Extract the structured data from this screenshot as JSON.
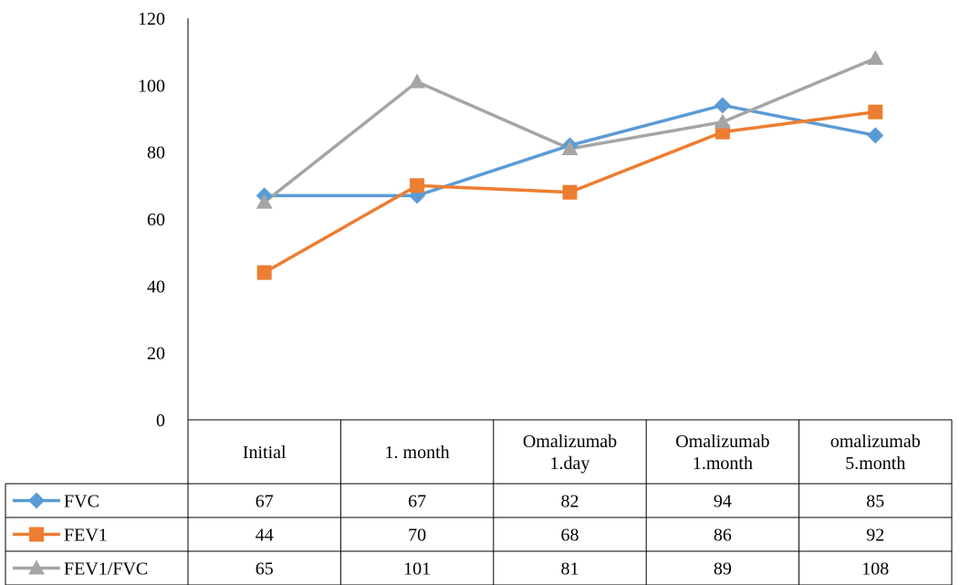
{
  "chart_data": {
    "type": "line",
    "title": "",
    "xlabel": "",
    "ylabel": "",
    "ylim": [
      0,
      120
    ],
    "yticks": [
      0,
      20,
      40,
      60,
      80,
      100,
      120
    ],
    "grid": false,
    "legend": "data-table",
    "categories": [
      [
        "Initial"
      ],
      [
        "1. month"
      ],
      [
        "Omalizumab",
        "1.day"
      ],
      [
        "Omalizumab",
        "1.month"
      ],
      [
        "omalizumab",
        "5.month"
      ]
    ],
    "series": [
      {
        "name": "FVC",
        "color": "#5B9BD5",
        "marker": "diamond",
        "values": [
          67,
          67,
          82,
          94,
          85
        ]
      },
      {
        "name": "FEV1",
        "color": "#ED7D31",
        "marker": "square",
        "values": [
          44,
          70,
          68,
          86,
          92
        ]
      },
      {
        "name": "FEV1/FVC",
        "color": "#A5A5A5",
        "marker": "triangle",
        "values": [
          65,
          101,
          81,
          89,
          108
        ]
      }
    ]
  }
}
